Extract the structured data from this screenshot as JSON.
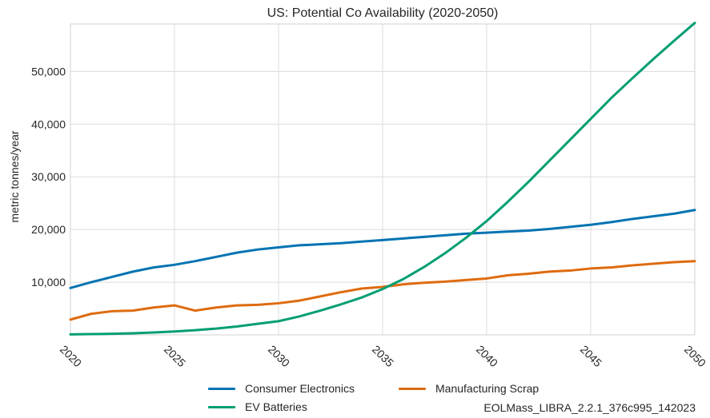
{
  "chart_data": {
    "type": "line",
    "title": "US: Potential Co Availability (2020-2050)",
    "xlabel": "",
    "ylabel": "metric tonnes/year",
    "xlim": [
      2020,
      2050
    ],
    "ylim": [
      0,
      59000
    ],
    "xticks": [
      "2020",
      "2025",
      "2030",
      "2035",
      "2040",
      "2045",
      "2050"
    ],
    "yticks": [
      "10,000",
      "20,000",
      "30,000",
      "40,000",
      "50,000"
    ],
    "grid": true,
    "legend_placement": "bottom",
    "x": [
      2020,
      2021,
      2022,
      2023,
      2024,
      2025,
      2026,
      2027,
      2028,
      2029,
      2030,
      2031,
      2032,
      2033,
      2034,
      2035,
      2036,
      2037,
      2038,
      2039,
      2040,
      2041,
      2042,
      2043,
      2044,
      2045,
      2046,
      2047,
      2048,
      2049,
      2050
    ],
    "series": [
      {
        "name": "Consumer Electronics",
        "color": "#0173b2",
        "values": [
          8900,
          10000,
          11000,
          12000,
          12800,
          13300,
          14000,
          14800,
          15600,
          16200,
          16600,
          17000,
          17200,
          17400,
          17700,
          18000,
          18300,
          18600,
          18900,
          19200,
          19400,
          19600,
          19800,
          20100,
          20500,
          20900,
          21400,
          22000,
          22500,
          23000,
          23700
        ]
      },
      {
        "name": "Manufacturing Scrap",
        "color": "#de6b0f",
        "values": [
          2900,
          4000,
          4500,
          4600,
          5200,
          5600,
          4600,
          5200,
          5600,
          5700,
          6000,
          6500,
          7300,
          8100,
          8800,
          9100,
          9600,
          9900,
          10100,
          10400,
          10700,
          11300,
          11600,
          12000,
          12200,
          12600,
          12800,
          13200,
          13500,
          13800,
          14000
        ]
      },
      {
        "name": "EV Batteries",
        "color": "#029e73",
        "values": [
          100,
          150,
          200,
          300,
          450,
          650,
          900,
          1200,
          1600,
          2100,
          2600,
          3500,
          4600,
          5800,
          7100,
          8700,
          10600,
          12900,
          15500,
          18400,
          21600,
          25200,
          29000,
          33000,
          37000,
          41000,
          45000,
          48700,
          52300,
          55800,
          59200
        ]
      }
    ]
  },
  "legend": {
    "items": [
      {
        "label": "Consumer Electronics",
        "color": "#0173b2"
      },
      {
        "label": "Manufacturing Scrap",
        "color": "#de6b0f"
      },
      {
        "label": "EV Batteries",
        "color": "#029e73"
      }
    ]
  },
  "footnote": "EOLMass_LIBRA_2.2.1_376c995_142023"
}
